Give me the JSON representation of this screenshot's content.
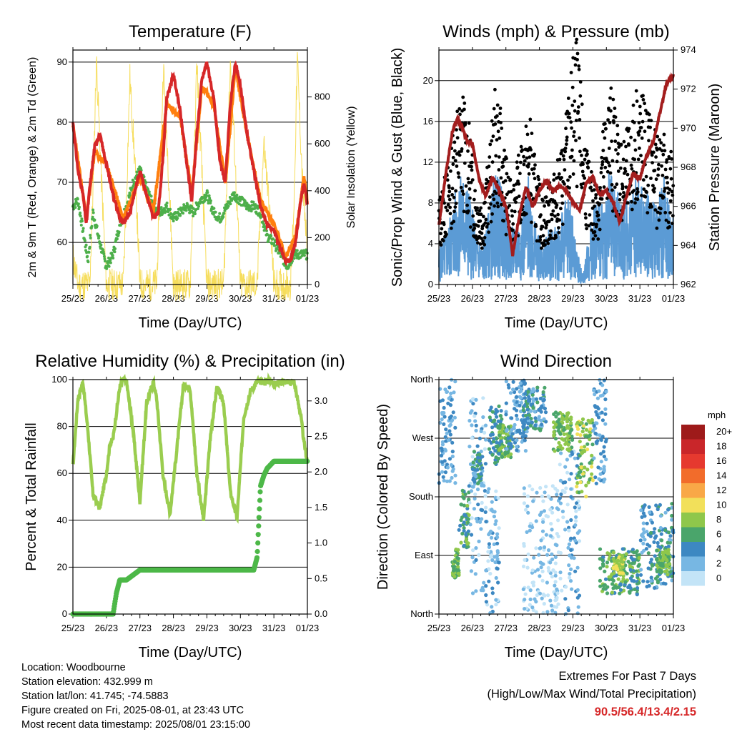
{
  "chart_data": [
    {
      "type": "line",
      "title": "Temperature (F)",
      "xlabel": "Time (Day/UTC)",
      "ylabel": "2m & 9m T (Red, Orange) & 2m Td (Green)",
      "y2label": "Solar Insolation (Yellow)",
      "xticks": [
        "25/23",
        "26/23",
        "27/23",
        "28/23",
        "29/23",
        "30/23",
        "31/23",
        "01/23"
      ],
      "xlim": [
        0,
        7
      ],
      "ylim": [
        53,
        92
      ],
      "yticks": [
        60,
        70,
        80,
        90
      ],
      "y2lim": [
        0,
        1000
      ],
      "y2ticks": [
        0,
        200,
        400,
        600,
        800
      ],
      "grid": "horizontal",
      "series": [
        {
          "name": "2m T",
          "color": "#d62728",
          "x": [
            0,
            0.15,
            0.3,
            0.4,
            0.5,
            0.65,
            0.8,
            1.0,
            1.2,
            1.4,
            1.5,
            1.7,
            2.0,
            2.2,
            2.4,
            2.55,
            2.7,
            2.8,
            3.0,
            3.2,
            3.4,
            3.55,
            3.7,
            3.85,
            4.0,
            4.2,
            4.4,
            4.55,
            4.7,
            4.85,
            5.0,
            5.2,
            5.4,
            5.6,
            5.8,
            6.0,
            6.2,
            6.35,
            6.5,
            6.65,
            6.8,
            6.9,
            7.0
          ],
          "y": [
            80,
            72,
            68,
            63,
            69,
            76,
            78,
            73,
            68,
            64,
            63,
            65,
            72,
            68,
            64,
            65,
            75,
            84,
            88,
            82,
            73,
            67,
            78,
            87,
            90,
            84,
            73,
            70,
            83,
            90,
            86,
            78,
            72,
            66,
            63,
            62,
            59,
            57,
            57,
            60,
            67,
            70,
            66
          ]
        },
        {
          "name": "9m T",
          "color": "#ff7f0e",
          "x": [
            0,
            0.4,
            0.65,
            1.0,
            1.5,
            2.0,
            2.4,
            2.8,
            3.2,
            3.55,
            3.85,
            4.2,
            4.55,
            4.85,
            5.2,
            5.6,
            6.0,
            6.35,
            6.65,
            6.9,
            7.0
          ],
          "y": [
            79.5,
            64,
            75,
            73,
            64,
            71,
            65,
            83,
            81,
            68,
            86,
            83,
            70,
            89,
            78,
            67,
            63,
            57.5,
            61,
            71,
            67
          ]
        },
        {
          "name": "2m Td",
          "color": "#4daf4a",
          "x": [
            0,
            0.15,
            0.3,
            0.45,
            0.6,
            0.8,
            1.0,
            1.2,
            1.4,
            1.6,
            1.8,
            2.0,
            2.2,
            2.4,
            2.6,
            2.8,
            3.0,
            3.2,
            3.4,
            3.6,
            3.8,
            4.0,
            4.2,
            4.4,
            4.6,
            4.8,
            5.0,
            5.2,
            5.4,
            5.6,
            5.8,
            6.0,
            6.2,
            6.4,
            6.6,
            6.8,
            7.0
          ],
          "y": [
            66,
            67,
            62,
            57,
            65,
            60,
            56,
            58,
            63,
            66,
            70,
            72,
            69,
            66,
            65,
            66,
            64,
            65,
            66,
            65,
            67,
            68,
            65,
            64,
            66,
            68,
            67,
            66,
            66,
            65,
            61,
            60,
            58,
            56,
            58,
            58,
            58
          ]
        },
        {
          "name": "Solar Insolation",
          "color": "#f5d94a",
          "axis": "y2",
          "x": [
            0,
            0.15,
            0.5,
            0.6,
            0.7,
            0.85,
            1.0,
            1.5,
            1.6,
            1.7,
            1.85,
            2.0,
            2.5,
            2.6,
            2.7,
            2.85,
            3.0,
            3.5,
            3.6,
            3.7,
            3.85,
            4.0,
            4.5,
            4.6,
            4.7,
            4.85,
            5.0,
            5.5,
            5.6,
            5.7,
            5.85,
            6.0,
            6.5,
            6.6,
            6.7,
            6.85,
            7.0
          ],
          "y": [
            120,
            0,
            0,
            400,
            960,
            450,
            0,
            0,
            380,
            880,
            520,
            0,
            0,
            420,
            930,
            500,
            0,
            0,
            440,
            950,
            480,
            0,
            0,
            460,
            950,
            500,
            0,
            0,
            300,
            600,
            350,
            0,
            0,
            350,
            960,
            450,
            120
          ]
        }
      ]
    },
    {
      "type": "scatter",
      "title": "Winds (mph) & Pressure (mb)",
      "xlabel": "Time (Day/UTC)",
      "ylabel": "Sonic/Prop Wind & Gust (Blue, Black)",
      "y2label": "Station Pressure (Maroon)",
      "xticks": [
        "25/23",
        "26/23",
        "27/23",
        "28/23",
        "29/23",
        "30/23",
        "31/23",
        "01/23"
      ],
      "xlim": [
        0,
        7
      ],
      "ylim": [
        0,
        23
      ],
      "yticks": [
        0,
        4,
        8,
        12,
        16,
        20
      ],
      "y2lim": [
        962,
        974
      ],
      "y2ticks": [
        962,
        964,
        966,
        968,
        970,
        972,
        974
      ],
      "grid": "horizontal",
      "pressure": {
        "name": "Station Pressure",
        "color": "#a31d1d",
        "x": [
          0,
          0.2,
          0.4,
          0.55,
          0.7,
          0.85,
          1.0,
          1.2,
          1.4,
          1.6,
          1.8,
          2.0,
          2.2,
          2.4,
          2.6,
          2.8,
          3.0,
          3.2,
          3.4,
          3.6,
          3.8,
          4.0,
          4.2,
          4.4,
          4.6,
          4.8,
          5.0,
          5.2,
          5.4,
          5.6,
          5.8,
          6.0,
          6.2,
          6.4,
          6.6,
          6.8,
          7.0
        ],
        "y": [
          965,
          967.6,
          969.8,
          970.5,
          970,
          969.3,
          969.2,
          967.4,
          966.5,
          967.5,
          966.8,
          966,
          963.5,
          965.5,
          967,
          966,
          966.8,
          967.3,
          966.8,
          967,
          966.8,
          966.2,
          965.8,
          967.2,
          967.5,
          966.6,
          966.8,
          966.2,
          965.2,
          966.5,
          967.7,
          967.4,
          968.6,
          969.3,
          970.8,
          972.3,
          972.7
        ]
      },
      "gust": {
        "name": "Gust",
        "color": "#000000",
        "x": [
          0,
          0.25,
          0.5,
          0.7,
          0.9,
          1.1,
          1.3,
          1.5,
          1.7,
          1.9,
          2.1,
          2.3,
          2.5,
          2.7,
          2.9,
          3.1,
          3.3,
          3.5,
          3.7,
          3.9,
          4.1,
          4.3,
          4.5,
          4.7,
          4.9,
          5.1,
          5.3,
          5.5,
          5.7,
          5.9,
          6.1,
          6.3,
          6.5,
          6.7,
          6.9
        ],
        "y": [
          6,
          8,
          12,
          13.5,
          11,
          7,
          6,
          9,
          14,
          11,
          7,
          8,
          10,
          12,
          8,
          6,
          7,
          8,
          10,
          14,
          17,
          12,
          8,
          7,
          11,
          14,
          12,
          10,
          11,
          14,
          13,
          12,
          10,
          11,
          9
        ]
      },
      "wind": {
        "name": "Wind",
        "color": "#5b9bd5",
        "x": [
          0,
          0.25,
          0.5,
          0.7,
          0.9,
          1.1,
          1.3,
          1.5,
          1.7,
          1.9,
          2.1,
          2.3,
          2.5,
          2.7,
          2.9,
          3.1,
          3.3,
          3.5,
          3.7,
          3.9,
          4.1,
          4.3,
          4.5,
          4.7,
          4.9,
          5.1,
          5.3,
          5.5,
          5.7,
          5.9,
          6.1,
          6.3,
          6.5,
          6.7,
          6.9
        ],
        "y": [
          2,
          3,
          5,
          6,
          5,
          3,
          2,
          4,
          6,
          5,
          3,
          3,
          4,
          6,
          3,
          2,
          3,
          3,
          4,
          5,
          2,
          0.5,
          3,
          5,
          4,
          6,
          5,
          4,
          5,
          6,
          5,
          5,
          4,
          6,
          4
        ]
      }
    },
    {
      "type": "line",
      "title": "Relative Humidity (%) & Precipitation (in)",
      "xlabel": "Time (Day/UTC)",
      "ylabel": "Percent & Total Rainfall",
      "xticks": [
        "25/23",
        "26/23",
        "27/23",
        "28/23",
        "29/23",
        "30/23",
        "31/23",
        "01/23"
      ],
      "xlim": [
        0,
        7
      ],
      "ylim": [
        0,
        100
      ],
      "yticks": [
        0,
        20,
        40,
        60,
        80,
        100
      ],
      "y2lim": [
        0,
        3.3
      ],
      "y2ticks": [
        0.0,
        0.5,
        1.0,
        1.5,
        2.0,
        2.5,
        3.0
      ],
      "grid": "horizontal",
      "series": [
        {
          "name": "Relative Humidity",
          "color": "#9acd4f",
          "x": [
            0,
            0.15,
            0.3,
            0.45,
            0.6,
            0.8,
            1.0,
            1.1,
            1.2,
            1.4,
            1.5,
            1.6,
            1.8,
            2.0,
            2.2,
            2.4,
            2.5,
            2.7,
            2.9,
            3.1,
            3.3,
            3.5,
            3.7,
            3.9,
            4.1,
            4.3,
            4.5,
            4.7,
            4.9,
            5.1,
            5.3,
            5.5,
            5.7,
            5.9,
            6.0,
            6.2,
            6.4,
            6.6,
            6.8,
            6.9,
            7.0
          ],
          "y": [
            63,
            92,
            99,
            78,
            51,
            45,
            60,
            72,
            75,
            97,
            100,
            99,
            78,
            48,
            90,
            99,
            92,
            58,
            43,
            70,
            98,
            96,
            60,
            40,
            75,
            97,
            90,
            52,
            41,
            84,
            95,
            99,
            99,
            100,
            98,
            99,
            99,
            99,
            85,
            73,
            65
          ]
        },
        {
          "name": "Total Precipitation",
          "color": "#4db848",
          "axis": "y2",
          "x": [
            0,
            1.2,
            1.3,
            1.4,
            1.6,
            2.0,
            5.4,
            5.5,
            5.55,
            5.6,
            5.7,
            5.8,
            6.0,
            7.0
          ],
          "y": [
            0,
            0,
            0.3,
            0.48,
            0.48,
            0.62,
            0.62,
            0.8,
            1.3,
            1.8,
            1.95,
            2.05,
            2.15,
            2.15
          ]
        }
      ]
    },
    {
      "type": "scatter",
      "title": "Wind Direction",
      "xlabel": "Time (Day/UTC)",
      "ylabel": "Direction (Colored By Speed)",
      "xticks": [
        "25/23",
        "26/23",
        "27/23",
        "28/23",
        "29/23",
        "30/23",
        "31/23",
        "01/23"
      ],
      "xlim": [
        0,
        7
      ],
      "ylim": [
        0,
        360
      ],
      "yticks": [
        "North",
        "East",
        "South",
        "West",
        "North"
      ],
      "grid": "horizontal",
      "colorbar": {
        "title": "mph",
        "labels": [
          "20+",
          "18",
          "16",
          "14",
          "12",
          "10",
          "8",
          "6",
          "4",
          "2",
          "0"
        ],
        "colors": [
          "#9e1a1a",
          "#c9262a",
          "#e6392f",
          "#f26c2b",
          "#f9a847",
          "#f2e05a",
          "#8fc74b",
          "#4aa56b",
          "#3d88c2",
          "#77b7e3",
          "#c3e4f7"
        ]
      },
      "clusters": [
        {
          "x": [
            0,
            0.5
          ],
          "dir": [
            200,
            360
          ],
          "speed": 3
        },
        {
          "x": [
            0.4,
            0.6
          ],
          "dir": [
            50,
            100
          ],
          "speed": 7
        },
        {
          "x": [
            0.6,
            0.9
          ],
          "dir": [
            100,
            190
          ],
          "speed": 6
        },
        {
          "x": [
            0.9,
            1.4
          ],
          "dir": [
            30,
            340
          ],
          "speed": 2
        },
        {
          "x": [
            1.0,
            1.3
          ],
          "dir": [
            200,
            250
          ],
          "speed": 4
        },
        {
          "x": [
            1.4,
            1.8
          ],
          "dir": [
            0,
            200
          ],
          "speed": 2
        },
        {
          "x": [
            1.5,
            1.9
          ],
          "dir": [
            230,
            320
          ],
          "speed": 5
        },
        {
          "x": [
            1.8,
            2.2
          ],
          "dir": [
            240,
            290
          ],
          "speed": 7
        },
        {
          "x": [
            2.0,
            2.6
          ],
          "dir": [
            250,
            360
          ],
          "speed": 3
        },
        {
          "x": [
            2.5,
            3.2
          ],
          "dir": [
            280,
            350
          ],
          "speed": 4
        },
        {
          "x": [
            2.5,
            3.6
          ],
          "dir": [
            0,
            200
          ],
          "speed": 1
        },
        {
          "x": [
            3.4,
            4.0
          ],
          "dir": [
            250,
            310
          ],
          "speed": 7
        },
        {
          "x": [
            3.6,
            4.2
          ],
          "dir": [
            0,
            250
          ],
          "speed": 2
        },
        {
          "x": [
            4.1,
            4.6
          ],
          "dir": [
            180,
            300
          ],
          "speed": 8
        },
        {
          "x": [
            4.6,
            5.0
          ],
          "dir": [
            200,
            360
          ],
          "speed": 3
        },
        {
          "x": [
            4.8,
            6.0
          ],
          "dir": [
            30,
            100
          ],
          "speed": 6
        },
        {
          "x": [
            5.2,
            5.5
          ],
          "dir": [
            60,
            90
          ],
          "speed": 9
        },
        {
          "x": [
            6.0,
            7.0
          ],
          "dir": [
            40,
            170
          ],
          "speed": 4
        },
        {
          "x": [
            6.5,
            6.9
          ],
          "dir": [
            60,
            100
          ],
          "speed": 7
        }
      ]
    }
  ],
  "info": {
    "location": "Location: Woodbourne",
    "elevation": "Station elevation: 432.999 m",
    "latlon": "Station lat/lon: 41.745; -74.5883",
    "created": "Figure created on Fri, 2025-08-01, at 23:43 UTC",
    "recent": "Most recent data timestamp: 2025/08/01 23:15:00"
  },
  "extremes": {
    "title": "Extremes For Past 7 Days",
    "subtitle": "(High/Low/Max Wind/Total Precipitation)",
    "values": "90.5/56.4/13.4/2.15"
  }
}
